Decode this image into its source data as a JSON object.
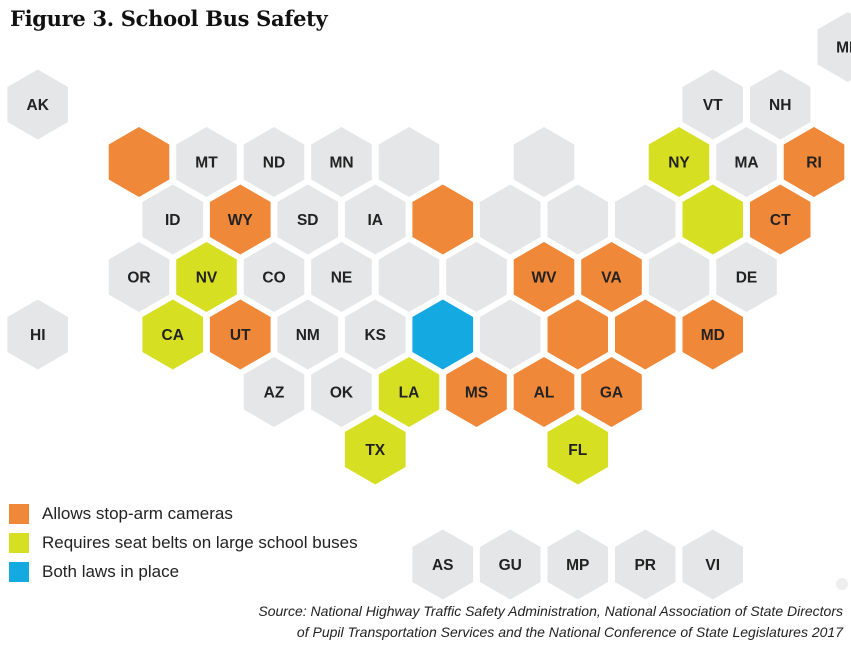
{
  "title": "Figure 3. School Bus Safety",
  "colors": {
    "stop_arm": "#F0883A",
    "seat_belts": "#D7DF23",
    "both": "#14A9E1",
    "none": "#E5E6E7"
  },
  "tiles": [
    {
      "id": "ME",
      "label": "ME",
      "status": "none",
      "col": 12.5,
      "row": 0
    },
    {
      "id": "AK",
      "label": "AK",
      "status": "none",
      "col": 0.5,
      "row": 1
    },
    {
      "id": "VT",
      "label": "VT",
      "status": "none",
      "col": 10.5,
      "row": 1
    },
    {
      "id": "NH",
      "label": "NH",
      "status": "none",
      "col": 11.5,
      "row": 1
    },
    {
      "id": "WA",
      "label": "",
      "status": "stop_arm",
      "col": 2,
      "row": 2
    },
    {
      "id": "MT",
      "label": "MT",
      "status": "none",
      "col": 3,
      "row": 2
    },
    {
      "id": "ND",
      "label": "ND",
      "status": "none",
      "col": 4,
      "row": 2
    },
    {
      "id": "MN",
      "label": "MN",
      "status": "none",
      "col": 5,
      "row": 2
    },
    {
      "id": "WI",
      "label": "",
      "status": "none",
      "col": 6,
      "row": 2
    },
    {
      "id": "MI",
      "label": "",
      "status": "none",
      "col": 8,
      "row": 2
    },
    {
      "id": "NY",
      "label": "NY",
      "status": "seat_belts",
      "col": 10,
      "row": 2
    },
    {
      "id": "MA",
      "label": "MA",
      "status": "none",
      "col": 11,
      "row": 2
    },
    {
      "id": "RI",
      "label": "RI",
      "status": "stop_arm",
      "col": 12,
      "row": 2
    },
    {
      "id": "ID",
      "label": "ID",
      "status": "none",
      "col": 2.5,
      "row": 3
    },
    {
      "id": "WY",
      "label": "WY",
      "status": "stop_arm",
      "col": 3.5,
      "row": 3
    },
    {
      "id": "SD",
      "label": "SD",
      "status": "none",
      "col": 4.5,
      "row": 3
    },
    {
      "id": "IA",
      "label": "IA",
      "status": "none",
      "col": 5.5,
      "row": 3
    },
    {
      "id": "IL",
      "label": "",
      "status": "stop_arm",
      "col": 6.5,
      "row": 3
    },
    {
      "id": "IN",
      "label": "",
      "status": "none",
      "col": 7.5,
      "row": 3
    },
    {
      "id": "OH",
      "label": "",
      "status": "none",
      "col": 8.5,
      "row": 3
    },
    {
      "id": "PA",
      "label": "",
      "status": "none",
      "col": 9.5,
      "row": 3
    },
    {
      "id": "NJ",
      "label": "",
      "status": "seat_belts",
      "col": 10.5,
      "row": 3
    },
    {
      "id": "CT",
      "label": "CT",
      "status": "stop_arm",
      "col": 11.5,
      "row": 3
    },
    {
      "id": "OR",
      "label": "OR",
      "status": "none",
      "col": 2,
      "row": 4
    },
    {
      "id": "NV",
      "label": "NV",
      "status": "seat_belts",
      "col": 3,
      "row": 4
    },
    {
      "id": "CO",
      "label": "CO",
      "status": "none",
      "col": 4,
      "row": 4
    },
    {
      "id": "NE",
      "label": "NE",
      "status": "none",
      "col": 5,
      "row": 4
    },
    {
      "id": "MO",
      "label": "",
      "status": "none",
      "col": 6,
      "row": 4
    },
    {
      "id": "KY",
      "label": "",
      "status": "none",
      "col": 7,
      "row": 4
    },
    {
      "id": "WV",
      "label": "WV",
      "status": "stop_arm",
      "col": 8,
      "row": 4
    },
    {
      "id": "VA",
      "label": "VA",
      "status": "stop_arm",
      "col": 9,
      "row": 4
    },
    {
      "id": "MD2",
      "label": "",
      "status": "none",
      "col": 10,
      "row": 4
    },
    {
      "id": "DE",
      "label": "DE",
      "status": "none",
      "col": 11,
      "row": 4
    },
    {
      "id": "HI",
      "label": "HI",
      "status": "none",
      "col": 0.5,
      "row": 5
    },
    {
      "id": "CA",
      "label": "CA",
      "status": "seat_belts",
      "col": 2.5,
      "row": 5
    },
    {
      "id": "UT",
      "label": "UT",
      "status": "stop_arm",
      "col": 3.5,
      "row": 5
    },
    {
      "id": "NM",
      "label": "NM",
      "status": "none",
      "col": 4.5,
      "row": 5
    },
    {
      "id": "KS",
      "label": "KS",
      "status": "none",
      "col": 5.5,
      "row": 5
    },
    {
      "id": "AR",
      "label": "",
      "status": "both",
      "col": 6.5,
      "row": 5
    },
    {
      "id": "TN",
      "label": "",
      "status": "none",
      "col": 7.5,
      "row": 5
    },
    {
      "id": "NC",
      "label": "",
      "status": "stop_arm",
      "col": 8.5,
      "row": 5
    },
    {
      "id": "SC",
      "label": "",
      "status": "stop_arm",
      "col": 9.5,
      "row": 5
    },
    {
      "id": "MD",
      "label": "MD",
      "status": "stop_arm",
      "col": 10.5,
      "row": 5
    },
    {
      "id": "AZ",
      "label": "AZ",
      "status": "none",
      "col": 4,
      "row": 6
    },
    {
      "id": "OK",
      "label": "OK",
      "status": "none",
      "col": 5,
      "row": 6
    },
    {
      "id": "LA",
      "label": "LA",
      "status": "seat_belts",
      "col": 6,
      "row": 6
    },
    {
      "id": "MS",
      "label": "MS",
      "status": "stop_arm",
      "col": 7,
      "row": 6
    },
    {
      "id": "AL",
      "label": "AL",
      "status": "stop_arm",
      "col": 8,
      "row": 6
    },
    {
      "id": "GA",
      "label": "GA",
      "status": "stop_arm",
      "col": 9,
      "row": 6
    },
    {
      "id": "TX",
      "label": "TX",
      "status": "seat_belts",
      "col": 5.5,
      "row": 7
    },
    {
      "id": "FL",
      "label": "FL",
      "status": "seat_belts",
      "col": 8.5,
      "row": 7
    },
    {
      "id": "AS",
      "label": "AS",
      "status": "none",
      "col": 6.5,
      "row": 9
    },
    {
      "id": "GU",
      "label": "GU",
      "status": "none",
      "col": 7.5,
      "row": 9
    },
    {
      "id": "MP",
      "label": "MP",
      "status": "none",
      "col": 8.5,
      "row": 9
    },
    {
      "id": "PR",
      "label": "PR",
      "status": "none",
      "col": 9.5,
      "row": 9
    },
    {
      "id": "VI",
      "label": "VI",
      "status": "none",
      "col": 10.5,
      "row": 9
    }
  ],
  "legend": [
    {
      "key": "stop_arm",
      "label": "Allows stop-arm cameras"
    },
    {
      "key": "seat_belts",
      "label": "Requires seat belts on large school buses"
    },
    {
      "key": "both",
      "label": "Both laws in place"
    }
  ],
  "source": {
    "line1": "Source:  National Highway Traffic Safety Administration, National Association of State Directors",
    "line2": "of Pupil Transportation Services and the National Conference of State Legislatures 2017"
  }
}
